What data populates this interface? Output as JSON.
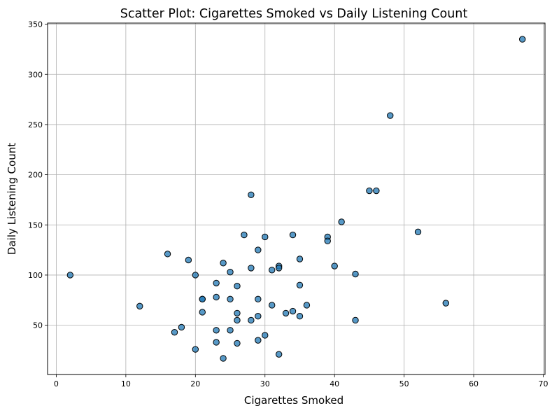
{
  "chart_data": {
    "type": "scatter",
    "title": "Scatter Plot: Cigarettes Smoked vs Daily Listening Count",
    "xlabel": "Cigarettes Smoked",
    "ylabel": "Daily Listening Count",
    "xlim": [
      -1.25,
      70.25
    ],
    "ylim": [
      0.9,
      351.1
    ],
    "xticks": [
      0,
      10,
      20,
      30,
      40,
      50,
      60,
      70
    ],
    "yticks": [
      50,
      100,
      150,
      200,
      250,
      300,
      350
    ],
    "grid": true,
    "marker_color": "#1f77b4",
    "marker_edge_color": "#000000",
    "marker_alpha": 0.75,
    "series": [
      {
        "points": [
          [
            2,
            100
          ],
          [
            12,
            69
          ],
          [
            16,
            121
          ],
          [
            17,
            43
          ],
          [
            18,
            48
          ],
          [
            19,
            115
          ],
          [
            20,
            100
          ],
          [
            20,
            26
          ],
          [
            21,
            76
          ],
          [
            21,
            76
          ],
          [
            21,
            63
          ],
          [
            23,
            92
          ],
          [
            23,
            78
          ],
          [
            23,
            45
          ],
          [
            23,
            33
          ],
          [
            24,
            112
          ],
          [
            24,
            17
          ],
          [
            25,
            103
          ],
          [
            25,
            76
          ],
          [
            25,
            45
          ],
          [
            26,
            89
          ],
          [
            26,
            62
          ],
          [
            26,
            55
          ],
          [
            26,
            32
          ],
          [
            27,
            140
          ],
          [
            28,
            180
          ],
          [
            28,
            107
          ],
          [
            28,
            55
          ],
          [
            29,
            125
          ],
          [
            29,
            76
          ],
          [
            29,
            59
          ],
          [
            29,
            35
          ],
          [
            30,
            138
          ],
          [
            30,
            40
          ],
          [
            31,
            105
          ],
          [
            31,
            70
          ],
          [
            32,
            109
          ],
          [
            32,
            107
          ],
          [
            32,
            21
          ],
          [
            33,
            62
          ],
          [
            34,
            140
          ],
          [
            34,
            64
          ],
          [
            35,
            116
          ],
          [
            35,
            90
          ],
          [
            35,
            59
          ],
          [
            36,
            70
          ],
          [
            39,
            138
          ],
          [
            39,
            134
          ],
          [
            40,
            109
          ],
          [
            41,
            153
          ],
          [
            43,
            101
          ],
          [
            43,
            55
          ],
          [
            45,
            184
          ],
          [
            46,
            184
          ],
          [
            48,
            259
          ],
          [
            52,
            143
          ],
          [
            56,
            72
          ],
          [
            67,
            335
          ]
        ]
      }
    ]
  }
}
